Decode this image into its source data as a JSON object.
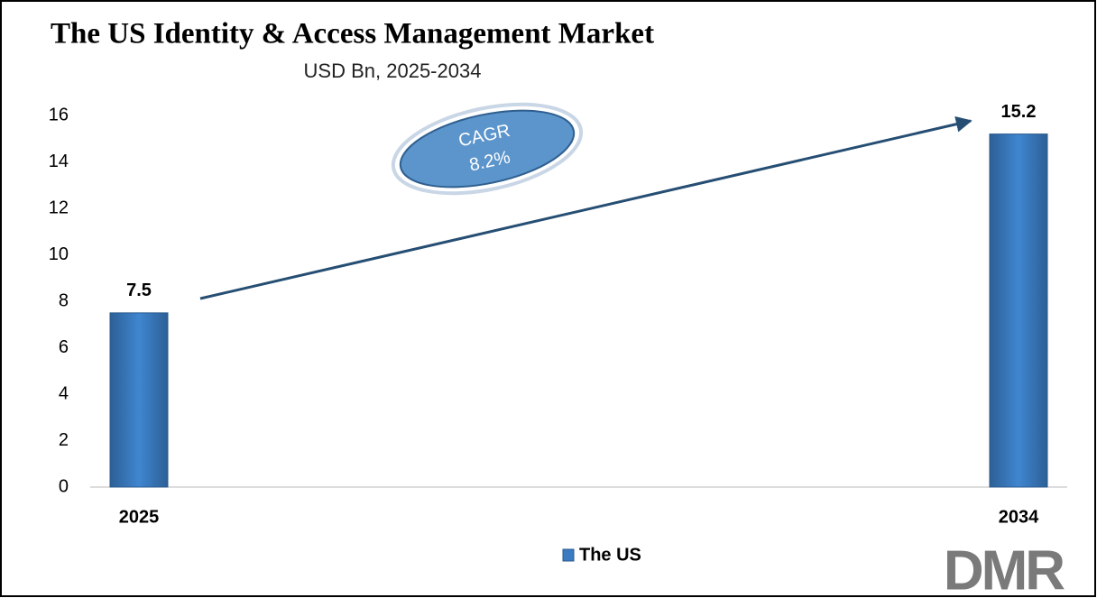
{
  "chart_data": {
    "type": "bar",
    "title": "The US Identity & Access Management Market",
    "subtitle": "USD Bn, 2025-2034",
    "categories": [
      "2025",
      "2034"
    ],
    "series": [
      {
        "name": "The US",
        "color": "#3a7bc2",
        "values": [
          7.5,
          15.2
        ]
      }
    ],
    "ylim": [
      0,
      16
    ],
    "yticks": [
      0,
      2,
      4,
      6,
      8,
      10,
      12,
      14,
      16
    ],
    "grid": false,
    "annotation": {
      "label": "CAGR",
      "value": "8.2%"
    },
    "legend": "bottom",
    "logo": "DMR"
  }
}
